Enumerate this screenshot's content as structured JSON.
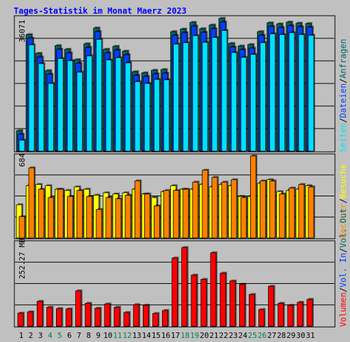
{
  "title": "Tages-Statistik im Monat Maerz 2023",
  "colors": {
    "background": "#C0C0C0",
    "title": "#0000FF",
    "frame": "#000000",
    "grid": "#000000",
    "hits": "#006666",
    "files": "#0040FF",
    "pages": "#00E0FF",
    "visits": "#FFFF00",
    "sites": "#FF8000",
    "kbytes": "#FF0000",
    "weekend_day": "#008040",
    "weekday": "#000000"
  },
  "legend": {
    "requests": "Anfragen",
    "files": "Dateien",
    "pages": "Seiten",
    "visits": "Besuche",
    "hosts": "Rechner",
    "vol_out": "Vol. Out",
    "vol_in": "Vol. In",
    "volume": "Volumen",
    "sep": "/"
  },
  "chart_data": [
    {
      "type": "bar",
      "panel": "top",
      "ymax_label": "36071",
      "ylim": [
        0,
        36071
      ],
      "categories": [
        "1",
        "2",
        "3",
        "4",
        "5",
        "6",
        "7",
        "8",
        "9",
        "10",
        "11",
        "12",
        "13",
        "14",
        "15",
        "16",
        "17",
        "18",
        "19",
        "20",
        "21",
        "22",
        "23",
        "24",
        "25",
        "26",
        "27",
        "28",
        "29",
        "30",
        "31"
      ],
      "series": [
        {
          "name": "Anfragen",
          "values": [
            5600,
            31700,
            26600,
            21900,
            28700,
            27700,
            24900,
            29200,
            33500,
            27700,
            28500,
            27200,
            21600,
            21300,
            22000,
            22200,
            32500,
            33200,
            35000,
            33300,
            34300,
            36100,
            29300,
            28600,
            29000,
            32500,
            34900,
            34600,
            35100,
            34800,
            34700
          ]
        },
        {
          "name": "Dateien",
          "values": [
            4600,
            30700,
            25600,
            20900,
            27700,
            26700,
            23900,
            28200,
            32500,
            26700,
            27500,
            26200,
            20600,
            20300,
            21000,
            21200,
            31500,
            32200,
            34000,
            32300,
            33300,
            35100,
            28300,
            27600,
            28000,
            31500,
            33900,
            33600,
            34100,
            33800,
            33700
          ]
        },
        {
          "name": "Seiten",
          "values": [
            3000,
            28900,
            23800,
            18400,
            25200,
            24600,
            21500,
            25900,
            30400,
            24800,
            25400,
            24000,
            18900,
            18400,
            19500,
            19400,
            29100,
            29500,
            31400,
            29600,
            30900,
            32800,
            26800,
            25500,
            26300,
            29500,
            31900,
            31700,
            32200,
            31700,
            31500
          ]
        }
      ]
    },
    {
      "type": "bar",
      "panel": "middle",
      "ymax_label": "684",
      "ylim": [
        0,
        684
      ],
      "categories": [
        "1",
        "2",
        "3",
        "4",
        "5",
        "6",
        "7",
        "8",
        "9",
        "10",
        "11",
        "12",
        "13",
        "14",
        "15",
        "16",
        "17",
        "18",
        "19",
        "20",
        "21",
        "22",
        "23",
        "24",
        "25",
        "26",
        "27",
        "28",
        "29",
        "30",
        "31"
      ],
      "series": [
        {
          "name": "Besuche",
          "values": [
            280,
            440,
            450,
            440,
            410,
            400,
            430,
            410,
            360,
            380,
            370,
            380,
            410,
            370,
            340,
            390,
            440,
            410,
            410,
            450,
            430,
            450,
            440,
            350,
            350,
            460,
            490,
            390,
            400,
            410,
            440
          ]
        },
        {
          "name": "Rechner",
          "values": [
            180,
            590,
            410,
            340,
            410,
            350,
            400,
            350,
            240,
            340,
            330,
            360,
            480,
            370,
            270,
            400,
            400,
            410,
            470,
            570,
            510,
            470,
            490,
            340,
            690,
            480,
            480,
            370,
            420,
            450,
            430
          ]
        }
      ]
    },
    {
      "type": "bar",
      "panel": "bottom",
      "ymax_label": "252.27 MB",
      "ylim": [
        0,
        252.27
      ],
      "categories": [
        "1",
        "2",
        "3",
        "4",
        "5",
        "6",
        "7",
        "8",
        "9",
        "10",
        "11",
        "12",
        "13",
        "14",
        "15",
        "16",
        "17",
        "18",
        "19",
        "20",
        "21",
        "22",
        "23",
        "24",
        "25",
        "26",
        "27",
        "28",
        "29",
        "30",
        "31"
      ],
      "series": [
        {
          "name": "Volumen",
          "values": [
            40,
            44,
            76,
            58,
            54,
            53,
            108,
            70,
            55,
            68,
            58,
            42,
            66,
            64,
            39,
            48,
            208,
            240,
            156,
            143,
            224,
            162,
            138,
            128,
            97,
            51,
            122,
            70,
            64,
            73,
            82
          ]
        }
      ]
    }
  ]
}
